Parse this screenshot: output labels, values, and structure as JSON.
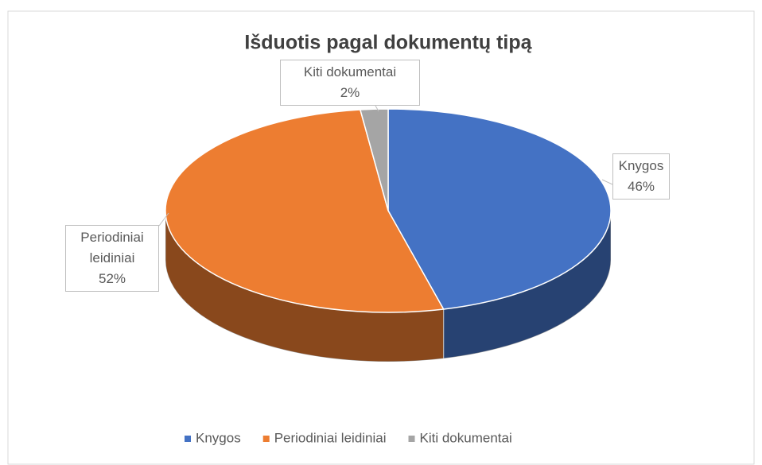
{
  "chart_data": {
    "type": "pie3d",
    "title": "Išduotis pagal dokumentų tipą",
    "categories": [
      "Knygos",
      "Periodiniai leidiniai",
      "Kiti dokumentai"
    ],
    "values": [
      46,
      52,
      2
    ],
    "value_labels": [
      "46%",
      "52%",
      "2%"
    ],
    "colors": [
      "#4472c4",
      "#ed7d31",
      "#a5a5a5"
    ],
    "legend": "bottom"
  }
}
